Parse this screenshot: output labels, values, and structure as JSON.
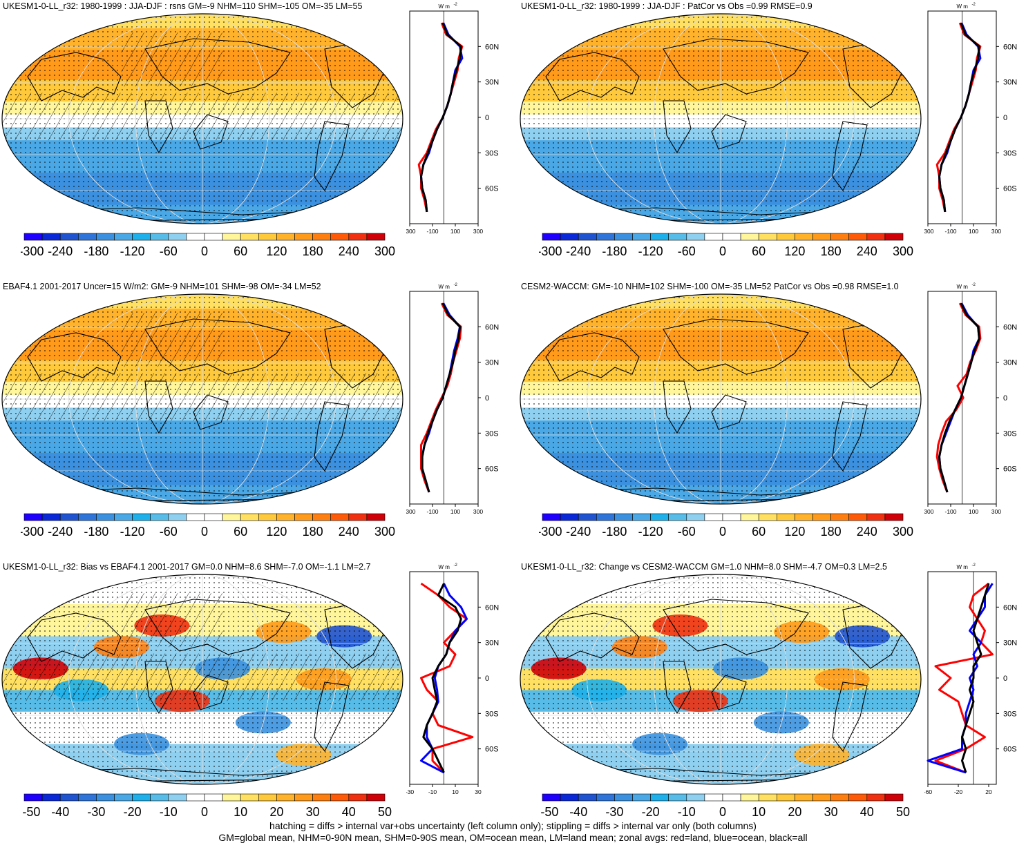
{
  "footer_lines": [
    "hatching = diffs > internal var+obs uncertainty (left column only); stippling = diffs > internal var only (both columns)",
    "GM=global mean, NHM=0-90N mean, SHM=0-90S mean, OM=ocean mean, LM=land mean; zonal avgs: red=land, blue=ocean, black=all"
  ],
  "palette": {
    "main": [
      "#1f00ff",
      "#0a28d8",
      "#1f53d0",
      "#2f74d8",
      "#3b91df",
      "#4aa8e6",
      "#1eb0ea",
      "#57bce8",
      "#8fd0f0",
      "#ffffff",
      "#ffffff",
      "#fff59a",
      "#ffe060",
      "#ffc93c",
      "#ffb22a",
      "#ff9a1a",
      "#ff7e10",
      "#ff5a08",
      "#f03010",
      "#d00008"
    ],
    "diff": [
      "#1f00ff",
      "#0a28d8",
      "#1f53d0",
      "#2f74d8",
      "#3b91df",
      "#4aa8e6",
      "#1eb0ea",
      "#57bce8",
      "#8fd0f0",
      "#ffffff",
      "#ffffff",
      "#fff59a",
      "#ffe060",
      "#ffc93c",
      "#ffb22a",
      "#ff9a1a",
      "#ff7e10",
      "#ff5a08",
      "#f03010",
      "#d00008"
    ]
  },
  "zonal_colors": {
    "land": "#ff0000",
    "ocean": "#0000ff",
    "all": "#000000"
  },
  "panels": [
    {
      "id": "p1",
      "title": "UKESM1-0-LL_r32: 1980-1999 : JJA-DJF : rsns GM=-9 NHM=110 SHM=-105 OM=-35 LM=55",
      "hatch": true,
      "kind": "main",
      "colorbar": {
        "ticks": [
          "-300",
          "-240",
          "-180",
          "-120",
          "-60",
          "0",
          "60",
          "120",
          "180",
          "240",
          "300"
        ]
      },
      "zonal": {
        "unit": "W m",
        "unit_sup": "-2",
        "lat_labels": [
          "60N",
          "30N",
          "0",
          "30S",
          "60S"
        ],
        "x_ticks": [
          "-300",
          "-100",
          "100",
          "300"
        ],
        "xlim": [
          -300,
          300
        ],
        "lat": [
          80,
          70,
          60,
          50,
          40,
          30,
          20,
          10,
          0,
          -10,
          -20,
          -30,
          -40,
          -50,
          -60,
          -70,
          -80
        ],
        "all": [
          -10,
          30,
          150,
          140,
          110,
          80,
          60,
          30,
          -10,
          -60,
          -100,
          -140,
          -180,
          -200,
          -190,
          -160,
          -150
        ],
        "land": [
          -20,
          20,
          160,
          130,
          120,
          90,
          60,
          30,
          -10,
          -70,
          -110,
          -150,
          -220,
          -200,
          -200,
          -170,
          -150
        ],
        "ocean": [
          -5,
          40,
          140,
          160,
          100,
          80,
          60,
          30,
          -10,
          -60,
          -100,
          -130,
          -180,
          -200,
          -190,
          -160,
          -150
        ]
      }
    },
    {
      "id": "p2",
      "title": "UKESM1-0-LL_r32: 1980-1999 : JJA-DJF : PatCor vs Obs =0.99 RMSE=0.9",
      "hatch": false,
      "kind": "main",
      "colorbar": {
        "ticks": [
          "-300",
          "-240",
          "-180",
          "-120",
          "-60",
          "0",
          "60",
          "120",
          "180",
          "240",
          "300"
        ]
      },
      "zonal": {
        "unit": "W m",
        "unit_sup": "-2",
        "lat_labels": [
          "60N",
          "30N",
          "0",
          "30S",
          "60S"
        ],
        "x_ticks": [
          "-300",
          "-100",
          "100",
          "300"
        ],
        "xlim": [
          -300,
          300
        ],
        "lat": [
          80,
          70,
          60,
          50,
          40,
          30,
          20,
          10,
          0,
          -10,
          -20,
          -30,
          -40,
          -50,
          -60,
          -70,
          -80
        ],
        "all": [
          -10,
          30,
          150,
          140,
          110,
          80,
          60,
          30,
          -10,
          -60,
          -100,
          -140,
          -180,
          -200,
          -190,
          -160,
          -150
        ],
        "land": [
          -20,
          20,
          160,
          130,
          120,
          90,
          60,
          30,
          -10,
          -70,
          -110,
          -150,
          -220,
          -200,
          -200,
          -170,
          -150
        ],
        "ocean": [
          -5,
          40,
          140,
          160,
          100,
          80,
          60,
          30,
          -10,
          -60,
          -100,
          -130,
          -180,
          -200,
          -190,
          -160,
          -150
        ]
      }
    },
    {
      "id": "p3",
      "title": "EBAF4.1 2001-2017 Uncer=15 W/m2: GM=-9 NHM=101 SHM=-98 OM=-34 LM=52",
      "hatch": true,
      "kind": "main",
      "colorbar": {
        "ticks": [
          "-300",
          "-240",
          "-180",
          "-120",
          "-60",
          "0",
          "60",
          "120",
          "180",
          "240",
          "300"
        ]
      },
      "zonal": {
        "unit": "W m",
        "unit_sup": "-2",
        "lat_labels": [
          "60N",
          "30N",
          "0",
          "30S",
          "60S"
        ],
        "x_ticks": [
          "-300",
          "-100",
          "100",
          "300"
        ],
        "xlim": [
          -300,
          300
        ],
        "lat": [
          80,
          70,
          60,
          50,
          40,
          30,
          20,
          10,
          0,
          -10,
          -20,
          -30,
          -40,
          -50,
          -60,
          -70,
          -80
        ],
        "all": [
          -10,
          40,
          140,
          130,
          100,
          80,
          50,
          20,
          -10,
          -60,
          -100,
          -140,
          -170,
          -190,
          -190,
          -160,
          -130
        ],
        "land": [
          -20,
          30,
          150,
          140,
          110,
          80,
          60,
          30,
          -20,
          -70,
          -110,
          -150,
          -200,
          -200,
          -200,
          -170,
          -130
        ],
        "ocean": [
          -5,
          50,
          140,
          120,
          90,
          70,
          50,
          20,
          -10,
          -60,
          -100,
          -130,
          -170,
          -190,
          -190,
          -160,
          -130
        ]
      }
    },
    {
      "id": "p4",
      "title": "CESM2-WACCM: GM=-10 NHM=102 SHM=-100 OM=-35 LM=52 PatCor vs Obs =0.98 RMSE=1.0",
      "hatch": false,
      "kind": "main",
      "colorbar": {
        "ticks": [
          "-300",
          "-240",
          "-180",
          "-120",
          "-60",
          "0",
          "60",
          "120",
          "180",
          "240",
          "300"
        ]
      },
      "zonal": {
        "unit": "W m",
        "unit_sup": "-2",
        "lat_labels": [
          "60N",
          "30N",
          "0",
          "30S",
          "60S"
        ],
        "x_ticks": [
          "-300",
          "-100",
          "100",
          "300"
        ],
        "xlim": [
          -300,
          300
        ],
        "lat": [
          80,
          70,
          60,
          50,
          40,
          30,
          20,
          10,
          0,
          -10,
          -20,
          -30,
          -40,
          -50,
          -60,
          -70,
          -80
        ],
        "all": [
          -10,
          40,
          140,
          150,
          110,
          80,
          50,
          20,
          -10,
          -60,
          -110,
          -150,
          -180,
          -200,
          -190,
          -160,
          -130
        ],
        "land": [
          -20,
          30,
          150,
          160,
          120,
          70,
          40,
          -40,
          10,
          -50,
          -140,
          -180,
          -210,
          -220,
          -200,
          -170,
          -130
        ],
        "ocean": [
          -5,
          50,
          140,
          150,
          100,
          80,
          50,
          20,
          -10,
          -60,
          -100,
          -140,
          -180,
          -200,
          -190,
          -160,
          -130
        ]
      }
    },
    {
      "id": "p5",
      "title": "UKESM1-0-LL_r32: Bias vs EBAF4.1 2001-2017 GM=0.0 NHM=8.6 SHM=-7.0 OM=-1.1 LM=2.7",
      "hatch": true,
      "kind": "diff",
      "colorbar": {
        "ticks": [
          "-50",
          "-40",
          "-30",
          "-20",
          "-10",
          "0",
          "10",
          "20",
          "30",
          "40",
          "50"
        ]
      },
      "zonal": {
        "unit": "W m",
        "unit_sup": "-2",
        "lat_labels": [
          "60N",
          "30N",
          "0",
          "30S",
          "60S"
        ],
        "x_ticks": [
          "-30",
          "-10",
          "10",
          "30"
        ],
        "xlim": [
          -30,
          30
        ],
        "lat": [
          80,
          70,
          60,
          50,
          40,
          30,
          20,
          10,
          0,
          -10,
          -20,
          -30,
          -40,
          -50,
          -60,
          -70,
          -80
        ],
        "all": [
          0,
          -5,
          10,
          15,
          12,
          5,
          2,
          -5,
          -10,
          -8,
          -6,
          -10,
          -15,
          -18,
          -10,
          -5,
          0
        ],
        "land": [
          -20,
          -5,
          5,
          20,
          10,
          0,
          10,
          5,
          -20,
          -15,
          -5,
          -10,
          -5,
          25,
          -10,
          -10,
          0
        ],
        "ocean": [
          0,
          5,
          15,
          20,
          10,
          5,
          2,
          -5,
          -8,
          -6,
          -5,
          -10,
          -15,
          -15,
          -10,
          -20,
          0
        ]
      }
    },
    {
      "id": "p6",
      "title": "UKESM1-0-LL_r32: Change vs CESM2-WACCM GM=1.0 NHM=8.0 SHM=-4.7 OM=0.3 LM=2.5",
      "hatch": false,
      "kind": "diff",
      "colorbar": {
        "ticks": [
          "-50",
          "-40",
          "-30",
          "-20",
          "-10",
          "0",
          "10",
          "20",
          "30",
          "40",
          "50"
        ]
      },
      "zonal": {
        "unit": "W m",
        "unit_sup": "-2",
        "lat_labels": [
          "60N",
          "30N",
          "0",
          "30S",
          "60S"
        ],
        "x_ticks": [
          "-60",
          "-20",
          "20"
        ],
        "xlim": [
          -60,
          30
        ],
        "lat": [
          80,
          70,
          60,
          50,
          40,
          30,
          20,
          10,
          0,
          -10,
          -20,
          -30,
          -40,
          -50,
          -60,
          -70,
          -80
        ],
        "all": [
          20,
          15,
          10,
          5,
          0,
          5,
          10,
          0,
          0,
          -5,
          0,
          -5,
          -10,
          -15,
          -10,
          -15,
          -10
        ],
        "land": [
          20,
          0,
          -5,
          5,
          15,
          10,
          25,
          -50,
          -30,
          -45,
          -20,
          -15,
          -10,
          15,
          -10,
          -50,
          -10
        ],
        "ocean": [
          25,
          15,
          15,
          5,
          -5,
          10,
          0,
          5,
          -5,
          0,
          -5,
          -10,
          -10,
          -15,
          -15,
          -60,
          -10
        ]
      }
    }
  ]
}
